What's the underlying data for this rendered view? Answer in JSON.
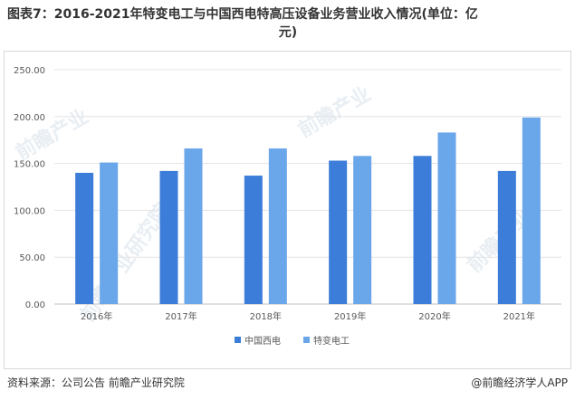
{
  "title_line1": "图表7：2016-2021年特变电工与中国西电特高压设备业务营业收入情况(单位：亿",
  "title_line2": "元)",
  "footer": {
    "source": "资料来源：公司公告 前瞻产业研究院",
    "brand": "@前瞻经济学人APP"
  },
  "watermarks": [
    "前瞻产业",
    "前瞻产业",
    "前瞻产业研究院",
    "前瞻产业"
  ],
  "chart_data": {
    "type": "bar",
    "categories": [
      "2016年",
      "2017年",
      "2018年",
      "2019年",
      "2020年",
      "2021年"
    ],
    "series": [
      {
        "name": "中国西电",
        "values": [
          140,
          142,
          137,
          153,
          158,
          142
        ],
        "color": "#3b7dd8"
      },
      {
        "name": "特变电工",
        "values": [
          151,
          166,
          166,
          158,
          183,
          199
        ],
        "color": "#6aa6ea"
      }
    ],
    "ylim": [
      0,
      250
    ],
    "yticks": [
      "0.00",
      "50.00",
      "100.00",
      "150.00",
      "200.00",
      "250.00"
    ],
    "grid": true,
    "legend": "bottom-center"
  }
}
